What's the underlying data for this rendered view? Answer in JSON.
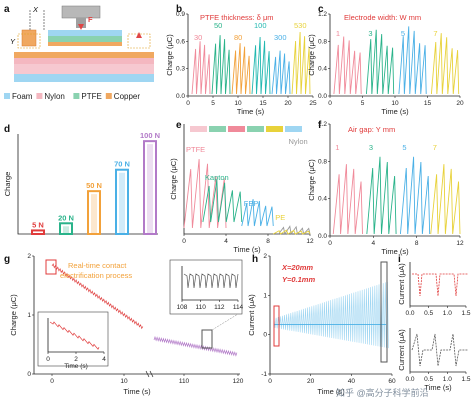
{
  "panel_labels": [
    "a",
    "b",
    "c",
    "d",
    "e",
    "f",
    "g",
    "h",
    "i"
  ],
  "colors": {
    "pink": "#f08a9a",
    "green": "#2ab38a",
    "orange": "#f2a13a",
    "blue": "#4ab0e6",
    "purple": "#b27ac8",
    "teal": "#21b8b0",
    "yellow": "#e8d23a",
    "red": "#e03b3b",
    "lightblue": "#9fd6f2",
    "grey": "#999999"
  },
  "legend_a": {
    "items": [
      {
        "label": "Foam",
        "color": "#9fd6f2"
      },
      {
        "label": "Nylon",
        "color": "#f4b7c0"
      },
      {
        "label": "PTFE",
        "color": "#8ad2b0"
      },
      {
        "label": "Copper",
        "color": "#f0a860"
      }
    ],
    "labels": {
      "x": "X",
      "y": "Y",
      "f": "F"
    }
  },
  "chart_data": [
    {
      "panel": "b",
      "type": "line",
      "title": "PTFE thickness: δ μm",
      "xlabel": "Time (s)",
      "ylabel": "Charge (μC)",
      "xlim": [
        0,
        25
      ],
      "ylim": [
        0,
        1.2
      ],
      "xticks": [
        "0",
        "5",
        "10",
        "15",
        "20",
        "25"
      ],
      "yticks": [
        "0.0",
        "0.3",
        "0.6",
        "0.9"
      ],
      "series": [
        {
          "name": "30",
          "start": 0.8,
          "amp": 0.85,
          "color": "#f08a9a"
        },
        {
          "name": "50",
          "start": 4.8,
          "amp": 0.95,
          "color": "#2ab38a"
        },
        {
          "name": "80",
          "start": 8.8,
          "amp": 0.82,
          "color": "#f2a13a"
        },
        {
          "name": "100",
          "start": 12.8,
          "amp": 0.92,
          "color": "#21b8b0"
        },
        {
          "name": "300",
          "start": 16.8,
          "amp": 0.7,
          "color": "#4ab0e6"
        },
        {
          "name": "530",
          "start": 20.8,
          "amp": 1.0,
          "color": "#e8d23a"
        }
      ]
    },
    {
      "panel": "c",
      "type": "line",
      "title": "Electrode width: W mm",
      "xlabel": "Time (s)",
      "ylabel": "Charge (μC)",
      "xlim": [
        0,
        20
      ],
      "ylim": [
        0,
        1.3
      ],
      "xticks": [
        "0",
        "5",
        "10",
        "15",
        "20"
      ],
      "yticks": [
        "0.0",
        "0.4",
        "0.8",
        "1.2"
      ],
      "series": [
        {
          "name": "1",
          "start": 0.6,
          "amp": 0.85,
          "color": "#f08a9a"
        },
        {
          "name": "3",
          "start": 5.6,
          "amp": 0.95,
          "color": "#2ab38a"
        },
        {
          "name": "5",
          "start": 10.6,
          "amp": 1.0,
          "color": "#4ab0e6"
        },
        {
          "name": "7",
          "start": 15.6,
          "amp": 0.9,
          "color": "#e8d23a"
        }
      ]
    },
    {
      "panel": "d",
      "type": "bar",
      "ylabel": "Charge",
      "categories": [
        "5 N",
        "20 N",
        "50 N",
        "70 N",
        "100 N"
      ],
      "values": [
        0.1,
        0.3,
        1.2,
        1.8,
        2.6
      ],
      "ylim": [
        0,
        2.8
      ],
      "bar_colors": [
        "#e03b3b",
        "#2ab38a",
        "#f2a13a",
        "#4ab0e6",
        "#b27ac8"
      ]
    },
    {
      "panel": "e",
      "type": "line",
      "xlabel": "Time (s)",
      "ylabel": "Charge (μC)",
      "xlim": [
        0,
        12
      ],
      "xticks": [
        "0",
        "4",
        "8",
        "12"
      ],
      "series": [
        {
          "name": "PTFE",
          "color": "#f08a9a",
          "x": [
            0,
            4
          ],
          "amp": 0.9
        },
        {
          "name": "Kapton",
          "color": "#2ab38a",
          "x": [
            1.8,
            5.5
          ],
          "amp": 0.55
        },
        {
          "name": "FEP",
          "color": "#4ab0e6",
          "x": [
            5.5,
            8.5
          ],
          "amp": 0.35
        },
        {
          "name": "Nylon",
          "color": "#999999",
          "x": [
            9,
            12
          ],
          "amp": 0.1
        },
        {
          "name": "PE",
          "color": "#e8d23a",
          "x": [
            8.5,
            12
          ],
          "amp": 0.05
        }
      ]
    },
    {
      "panel": "f",
      "type": "line",
      "title": "Air gap: Y mm",
      "xlabel": "Time (s)",
      "ylabel": "Charge (μC)",
      "xlim": [
        0,
        12
      ],
      "ylim": [
        0,
        1.4
      ],
      "xticks": [
        "0",
        "4",
        "8",
        "12"
      ],
      "yticks": [
        "0.0",
        "0.4",
        "0.8",
        "1.2"
      ],
      "series": [
        {
          "name": "1",
          "start": 0.3,
          "amp": 0.95,
          "color": "#f08a9a"
        },
        {
          "name": "3",
          "start": 3.4,
          "amp": 1.05,
          "color": "#2ab38a"
        },
        {
          "name": "5",
          "start": 6.5,
          "amp": 1.05,
          "color": "#4ab0e6"
        },
        {
          "name": "7",
          "start": 9.3,
          "amp": 0.95,
          "color": "#e8d23a"
        }
      ]
    },
    {
      "panel": "g",
      "type": "line",
      "annotation": "Real-time contact electrification process",
      "xlabel": "Time (s)",
      "ylabel": "Charge (μC)",
      "xticks": [
        "0",
        "10",
        "110",
        "120"
      ],
      "yticks": [
        "0",
        "1",
        "2"
      ],
      "ylim": [
        0,
        2.5
      ],
      "inset1": {
        "xlabel": "Time (s)",
        "ylabel": "Charge (μC)",
        "xticks": [
          "0",
          "2",
          "4"
        ],
        "yticks": [
          "2.0",
          "2.1",
          "2.2"
        ]
      },
      "inset2": {
        "xlabel": "Time (s)",
        "ylabel": "Charge (μC)",
        "xticks": [
          "108",
          "110",
          "112",
          "114"
        ],
        "yticks": [
          "0.8",
          "0.9"
        ]
      }
    },
    {
      "panel": "h",
      "type": "line",
      "annotation_x": "X=20mm",
      "annotation_y": "Y=0.1mm",
      "xlabel": "Time (s)",
      "ylabel": "Current (μA)",
      "xticks": [
        "0",
        "20",
        "40",
        "60"
      ],
      "yticks": [
        "-1",
        "0",
        "1",
        "2"
      ],
      "ylim": [
        -1.3,
        2.4
      ]
    },
    {
      "panel": "i",
      "type": "line",
      "top": {
        "ylabel": "Current (μA)",
        "xticks": [
          "0.0",
          "0.5",
          "1.0",
          "1.5"
        ],
        "yticks": [
          "0.0",
          "0.2"
        ]
      },
      "bottom": {
        "ylabel": "Current (μA)",
        "xlabel": "Time (s)",
        "xticks": [
          "0.0",
          "0.5",
          "1.0",
          "1.5"
        ],
        "yticks": [
          "-0.2",
          "0.0",
          "0.2"
        ]
      }
    }
  ],
  "watermark": "知乎 @高分子科学前沿"
}
